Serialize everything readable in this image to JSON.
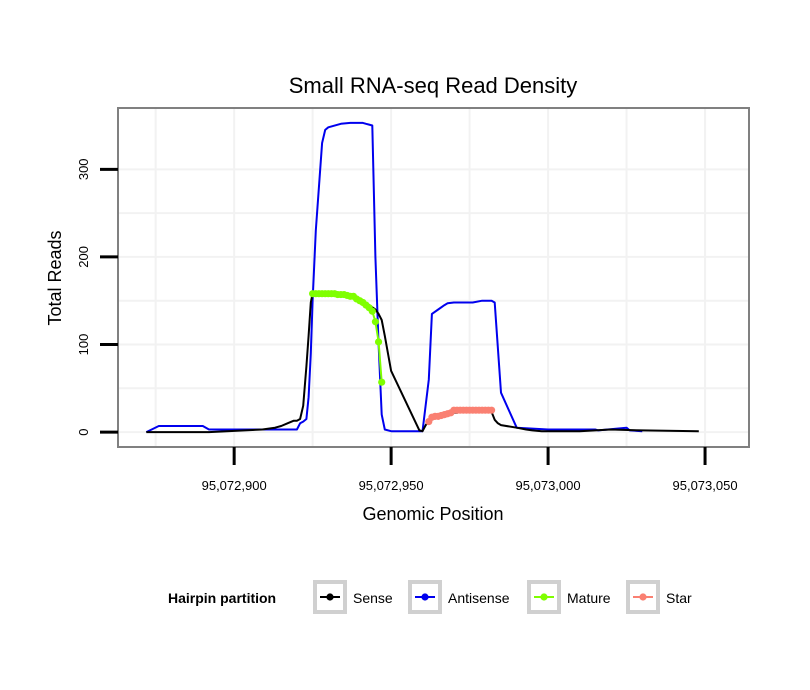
{
  "chart_data": {
    "type": "line",
    "title": "Small RNA-seq Read Density",
    "xlabel": "Genomic Position",
    "ylabel": "Total Reads",
    "xlim": [
      95072863,
      95073064
    ],
    "ylim": [
      -17,
      370
    ],
    "x_ticks": [
      95072900,
      95072950,
      95073000,
      95073050
    ],
    "x_tick_labels": [
      "95,072,900",
      "95,072,950",
      "95,073,000",
      "95,073,050"
    ],
    "y_ticks": [
      0,
      100,
      200,
      300
    ],
    "y_tick_labels": [
      "0",
      "100",
      "200",
      "300"
    ],
    "grid": true,
    "legend": {
      "title": "Hairpin partition",
      "position": "bottom",
      "entries": [
        "Sense",
        "Antisense",
        "Mature",
        "Star"
      ]
    },
    "series": [
      {
        "name": "Antisense",
        "color": "#0000ee",
        "x": [
          95072872,
          95072876,
          95072890,
          95072892,
          95072920,
          95072921,
          95072922,
          95072923,
          95072923.7,
          95072924.4,
          95072925,
          95072926,
          95072928,
          95072929,
          95072930,
          95072934,
          95072937,
          95072939,
          95072940,
          95072941,
          95072942,
          95072943,
          95072944,
          95072945,
          95072946,
          95072947,
          95072948,
          95072950,
          95072960,
          95072962,
          95072963,
          95072965,
          95072967,
          95072968,
          95072970,
          95072975,
          95072976,
          95072979,
          95072980,
          95072981,
          95072982,
          95072983,
          95072985,
          95072990,
          95073000,
          95073015,
          95073016,
          95073025,
          95073026,
          95073030
        ],
        "y": [
          0,
          7,
          7,
          3,
          3,
          10,
          12,
          15,
          40,
          90,
          150,
          230,
          330,
          345,
          348,
          352,
          353,
          353,
          353,
          353,
          352,
          351,
          350,
          200,
          100,
          20,
          3,
          1,
          1,
          60,
          135,
          140,
          145,
          147,
          148,
          148,
          148,
          150,
          150,
          150,
          150,
          148,
          45,
          5,
          3,
          3,
          2,
          5,
          2,
          1
        ]
      },
      {
        "name": "Sense",
        "color": "#000000",
        "x": [
          95072872,
          95072890,
          95072892,
          95072909,
          95072913,
          95072915,
          95072917,
          95072919,
          95072920,
          95072921,
          95072922,
          95072923,
          95072923.7,
          95072924.4,
          95072925,
          95072930,
          95072937,
          95072941,
          95072945,
          95072946,
          95072947,
          95072948,
          95072950,
          95072959,
          95072960,
          95072961,
          95072962,
          95072963,
          95072964,
          95072965,
          95072966,
          95072967,
          95072968,
          95072969,
          95072970,
          95072971,
          95072972,
          95072973,
          95072974,
          95072975,
          95072976,
          95072977,
          95072978,
          95072979,
          95072980,
          95072981,
          95072982,
          95072983,
          95072984,
          95072985,
          95072990,
          95072993,
          95072995,
          95072998,
          95073010,
          95073015,
          95073020,
          95073030,
          95073048
        ],
        "y": [
          0,
          0,
          0,
          3,
          5,
          7,
          10,
          13,
          13,
          15,
          30,
          75,
          110,
          148,
          158,
          157,
          155,
          150,
          140,
          135,
          128,
          110,
          70,
          2,
          1,
          8,
          12,
          14,
          16,
          17,
          18,
          19,
          20,
          21,
          22,
          22,
          23,
          23,
          24,
          24,
          24,
          24,
          24,
          24,
          24,
          24,
          23,
          14,
          10,
          8,
          5,
          3,
          2,
          1,
          1,
          2,
          3,
          2,
          1
        ]
      },
      {
        "name": "Mature",
        "color": "#7fff00",
        "x": [
          95072925,
          95072926,
          95072927,
          95072928,
          95072929,
          95072930,
          95072931,
          95072932,
          95072933,
          95072934,
          95072935,
          95072936,
          95072937,
          95072938,
          95072939,
          95072940,
          95072941,
          95072942,
          95072943,
          95072944,
          95072945,
          95072946,
          95072947
        ],
        "y": [
          158,
          158,
          158,
          158,
          158,
          158,
          158,
          158,
          157,
          157,
          157,
          156,
          155,
          155,
          152,
          150,
          148,
          145,
          142,
          138,
          126,
          103,
          57
        ]
      },
      {
        "name": "Star",
        "color": "#fa8072",
        "x": [
          95072962,
          95072963,
          95072964,
          95072965,
          95072966,
          95072967,
          95072968,
          95072969,
          95072970,
          95072971,
          95072972,
          95072973,
          95072974,
          95072975,
          95072976,
          95072977,
          95072978,
          95072979,
          95072980,
          95072981,
          95072982
        ],
        "y": [
          12,
          17,
          18,
          18,
          19,
          20,
          21,
          22,
          25,
          25,
          25,
          25,
          25,
          25,
          25,
          25,
          25,
          25,
          25,
          25,
          25
        ]
      }
    ]
  }
}
